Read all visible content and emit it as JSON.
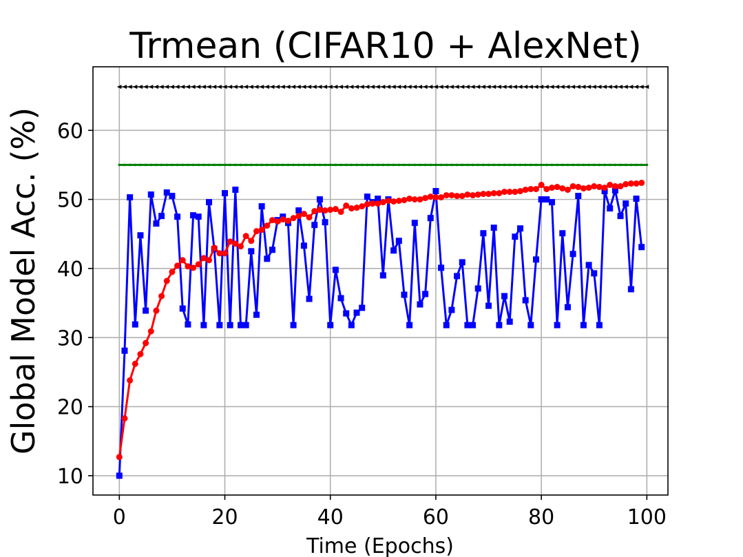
{
  "chart_data": {
    "type": "line",
    "title": "Trmean (CIFAR10 + AlexNet)",
    "xlabel": "Time (Epochs)",
    "ylabel": "Global Model Acc. (%)",
    "xlim": [
      -5,
      104
    ],
    "ylim": [
      7.2,
      69.2
    ],
    "xticks": [
      0,
      20,
      40,
      60,
      80,
      100
    ],
    "yticks": [
      10,
      20,
      30,
      40,
      50,
      60
    ],
    "xtick_labels": [
      "0",
      "20",
      "40",
      "60",
      "80",
      "100"
    ],
    "ytick_labels": [
      "10",
      "20",
      "30",
      "40",
      "50",
      "60"
    ],
    "grid": true,
    "legend": "none",
    "series": [
      {
        "color": "#000000",
        "marker": "triangle-left",
        "x_start": 0,
        "x_step": 1,
        "values": [
          66.3,
          66.3,
          66.3,
          66.3,
          66.3,
          66.3,
          66.3,
          66.3,
          66.3,
          66.3,
          66.3,
          66.3,
          66.3,
          66.3,
          66.3,
          66.3,
          66.3,
          66.3,
          66.3,
          66.3,
          66.3,
          66.3,
          66.3,
          66.3,
          66.3,
          66.3,
          66.3,
          66.3,
          66.3,
          66.3,
          66.3,
          66.3,
          66.3,
          66.3,
          66.3,
          66.3,
          66.3,
          66.3,
          66.3,
          66.3,
          66.3,
          66.3,
          66.3,
          66.3,
          66.3,
          66.3,
          66.3,
          66.3,
          66.3,
          66.3,
          66.3,
          66.3,
          66.3,
          66.3,
          66.3,
          66.3,
          66.3,
          66.3,
          66.3,
          66.3,
          66.3,
          66.3,
          66.3,
          66.3,
          66.3,
          66.3,
          66.3,
          66.3,
          66.3,
          66.3,
          66.3,
          66.3,
          66.3,
          66.3,
          66.3,
          66.3,
          66.3,
          66.3,
          66.3,
          66.3,
          66.3,
          66.3,
          66.3,
          66.3,
          66.3,
          66.3,
          66.3,
          66.3,
          66.3,
          66.3,
          66.3,
          66.3,
          66.3,
          66.3,
          66.3,
          66.3,
          66.3,
          66.3,
          66.3,
          66.3,
          66.3
        ]
      },
      {
        "color": "#008000",
        "marker": "point",
        "x_start": 0,
        "x_step": 1,
        "values": [
          55.0,
          55.0,
          55.0,
          55.0,
          55.0,
          55.0,
          55.0,
          55.0,
          55.0,
          55.0,
          55.0,
          55.0,
          55.0,
          55.0,
          55.0,
          55.0,
          55.0,
          55.0,
          55.0,
          55.0,
          55.0,
          55.0,
          55.0,
          55.0,
          55.0,
          55.0,
          55.0,
          55.0,
          55.0,
          55.0,
          55.0,
          55.0,
          55.0,
          55.0,
          55.0,
          55.0,
          55.0,
          55.0,
          55.0,
          55.0,
          55.0,
          55.0,
          55.0,
          55.0,
          55.0,
          55.0,
          55.0,
          55.0,
          55.0,
          55.0,
          55.0,
          55.0,
          55.0,
          55.0,
          55.0,
          55.0,
          55.0,
          55.0,
          55.0,
          55.0,
          55.0,
          55.0,
          55.0,
          55.0,
          55.0,
          55.0,
          55.0,
          55.0,
          55.0,
          55.0,
          55.0,
          55.0,
          55.0,
          55.0,
          55.0,
          55.0,
          55.0,
          55.0,
          55.0,
          55.0,
          55.0,
          55.0,
          55.0,
          55.0,
          55.0,
          55.0,
          55.0,
          55.0,
          55.0,
          55.0,
          55.0,
          55.0,
          55.0,
          55.0,
          55.0,
          55.0,
          55.0,
          55.0,
          55.0,
          55.0,
          55.0
        ]
      },
      {
        "color": "#0000ff",
        "marker": "square",
        "x_start": 0,
        "x_step": 1,
        "values": [
          10.0,
          28.1,
          50.3,
          31.9,
          44.8,
          33.9,
          50.7,
          46.5,
          47.6,
          51.0,
          50.5,
          47.5,
          34.2,
          31.9,
          47.7,
          47.5,
          31.8,
          49.6,
          42.8,
          31.8,
          50.9,
          31.8,
          51.4,
          31.8,
          31.8,
          42.5,
          33.3,
          49.0,
          41.4,
          42.7,
          47.0,
          47.5,
          46.6,
          31.8,
          48.4,
          43.3,
          35.6,
          46.3,
          50.0,
          46.7,
          31.8,
          39.8,
          35.7,
          33.5,
          31.8,
          33.6,
          34.3,
          50.4,
          49.6,
          50.1,
          39.0,
          50.0,
          42.6,
          44.0,
          36.2,
          31.8,
          46.6,
          34.8,
          36.3,
          47.3,
          51.2,
          40.1,
          31.8,
          34.0,
          38.9,
          40.9,
          31.8,
          31.8,
          37.1,
          45.1,
          34.6,
          45.9,
          31.8,
          36.0,
          32.3,
          44.6,
          45.8,
          35.4,
          31.8,
          41.3,
          50.0,
          50.0,
          49.6,
          31.8,
          45.1,
          34.4,
          42.1,
          50.5,
          31.8,
          40.5,
          39.3,
          31.8,
          51.2,
          48.7,
          51.3,
          47.6,
          49.4,
          37.0,
          50.1,
          43.1
        ]
      },
      {
        "color": "#ff0000",
        "marker": "circle",
        "x_start": 0,
        "x_step": 1,
        "values": [
          12.7,
          18.3,
          23.8,
          26.2,
          27.6,
          29.2,
          30.9,
          33.9,
          36.0,
          38.2,
          39.5,
          40.4,
          41.2,
          40.3,
          40.1,
          40.6,
          41.5,
          41.2,
          43.0,
          42.2,
          42.2,
          43.9,
          43.6,
          43.2,
          44.7,
          44.0,
          45.4,
          45.6,
          46.2,
          47.0,
          46.8,
          47.1,
          46.9,
          47.3,
          47.6,
          47.9,
          47.4,
          48.3,
          48.5,
          48.4,
          48.5,
          48.6,
          48.2,
          49.1,
          48.7,
          48.8,
          49.0,
          49.3,
          49.4,
          49.4,
          49.6,
          49.8,
          49.7,
          49.8,
          49.9,
          50.1,
          50.0,
          50.0,
          50.2,
          50.4,
          50.3,
          50.3,
          50.6,
          50.6,
          50.5,
          50.5,
          50.7,
          50.6,
          50.7,
          50.8,
          50.8,
          50.9,
          50.9,
          51.1,
          51.1,
          51.1,
          51.2,
          51.4,
          51.5,
          51.5,
          52.1,
          51.5,
          51.7,
          51.8,
          51.6,
          51.4,
          51.9,
          51.8,
          51.6,
          51.7,
          51.9,
          51.8,
          51.7,
          52.1,
          51.9,
          51.9,
          52.2,
          52.3,
          52.3,
          52.4
        ]
      }
    ]
  }
}
